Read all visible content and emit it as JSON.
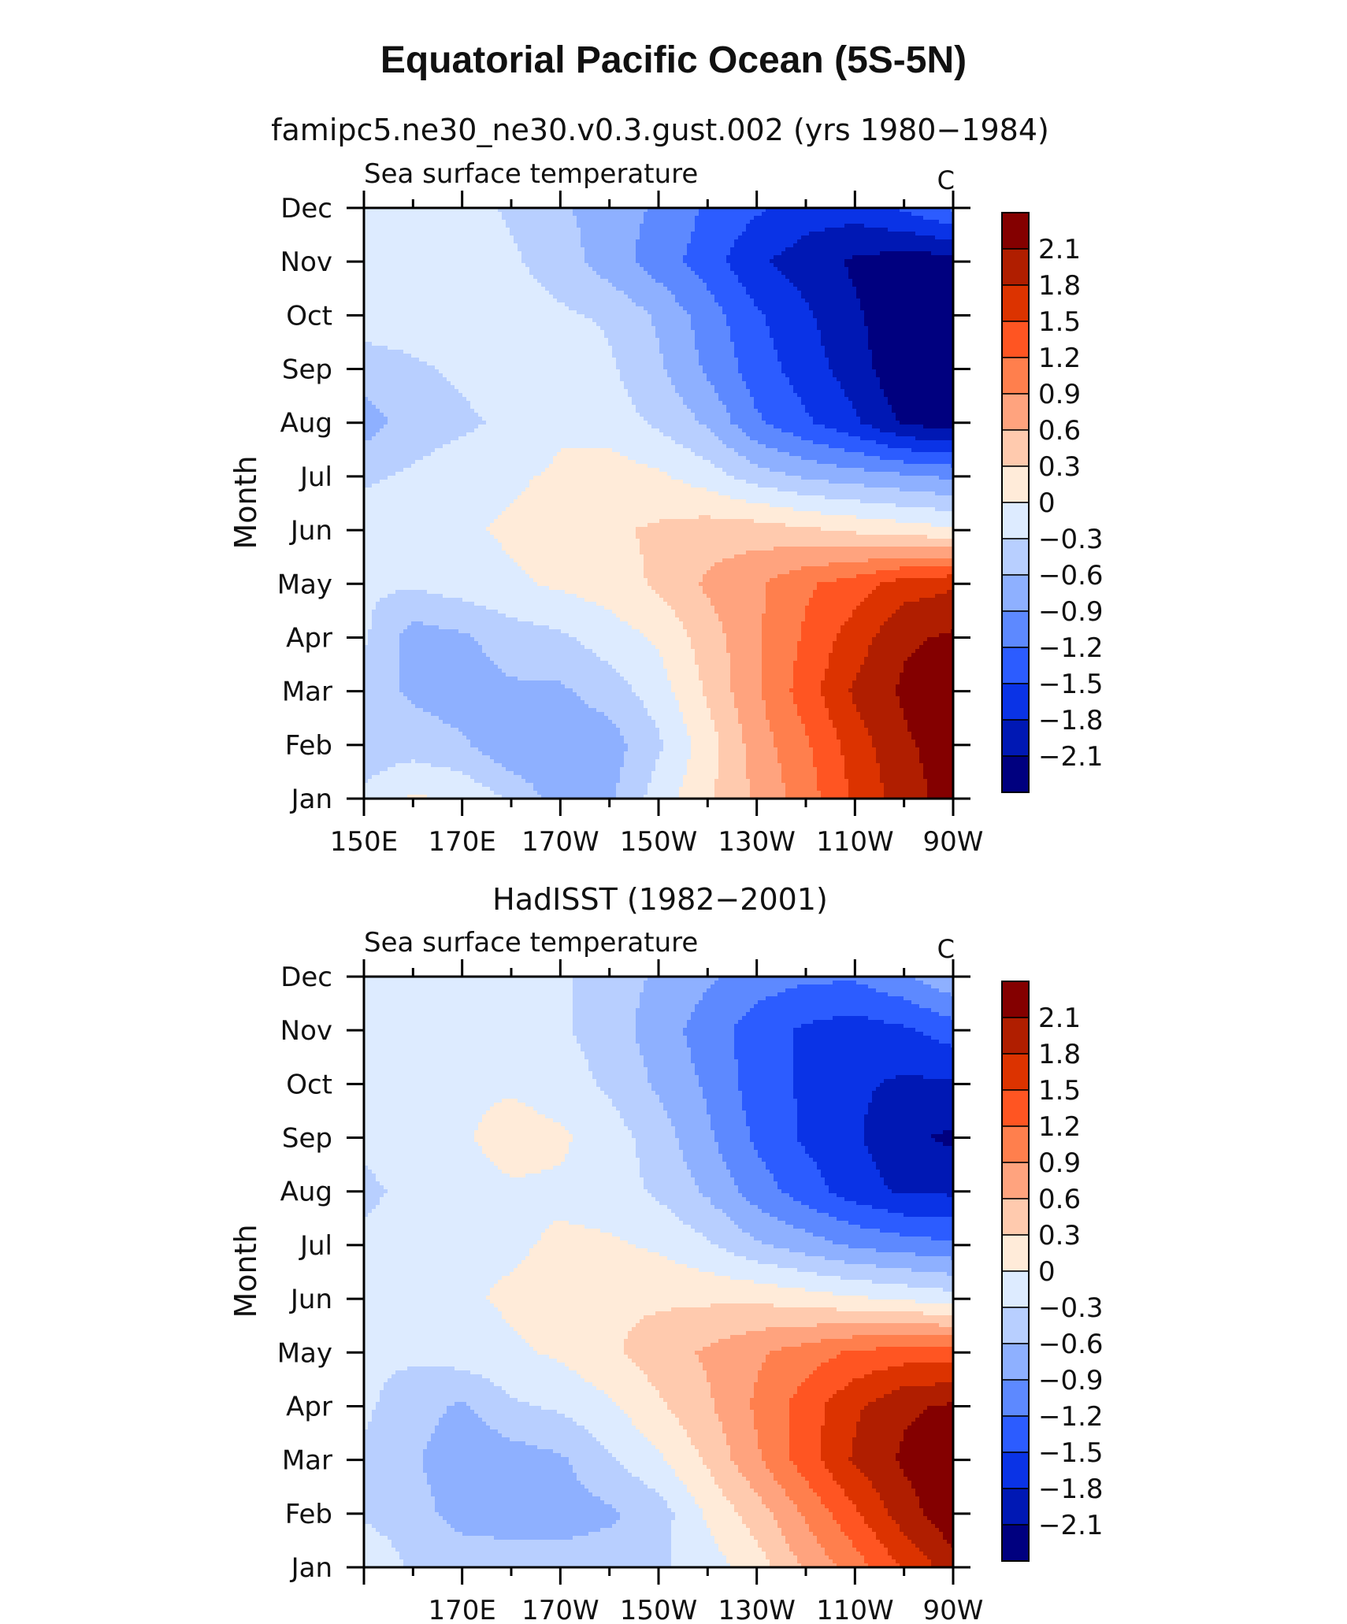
{
  "page": {
    "title": "Equatorial Pacific Ocean (5S-5N)"
  },
  "colorbar": {
    "levels": [
      "2.1",
      "1.8",
      "1.5",
      "1.2",
      "0.9",
      "0.6",
      "0.3",
      "0",
      "−0.3",
      "−0.6",
      "−0.9",
      "−1.2",
      "−1.5",
      "−1.8",
      "−2.1"
    ],
    "colors": [
      "#840000",
      "#B01E00",
      "#DC3300",
      "#FF5522",
      "#FF7F4D",
      "#FFA37E",
      "#FFCAAE",
      "#FFEBD9",
      "#DDEBFF",
      "#B8CFFF",
      "#8EB0FF",
      "#5D89FF",
      "#2C5CFF",
      "#0A33E6",
      "#0018B4",
      "#00007F"
    ]
  },
  "chart_data": [
    {
      "type": "heatmap",
      "name": "model",
      "title": "famipc5.ne30_ne30.v0.3.gust.002 (yrs 1980−1984)",
      "subtitle_left": "Sea surface temperature",
      "subtitle_right": "C",
      "ylabel": "Month",
      "months": [
        "Jan",
        "Feb",
        "Mar",
        "Apr",
        "May",
        "Jun",
        "Jul",
        "Aug",
        "Sep",
        "Oct",
        "Nov",
        "Dec"
      ],
      "lon_ticks": [
        "150E",
        "170E",
        "170W",
        "150W",
        "130W",
        "110W",
        "90W"
      ],
      "xlim": [
        150,
        270
      ],
      "x": [
        150,
        160,
        170,
        180,
        190,
        200,
        210,
        220,
        230,
        240,
        250,
        260,
        270
      ],
      "z": [
        [
          -0.1,
          0.2,
          0.1,
          -0.2,
          -0.6,
          -0.5,
          0.0,
          0.4,
          0.8,
          1.2,
          1.7,
          2.1,
          2.4
        ],
        [
          -0.3,
          -0.3,
          -0.4,
          -0.7,
          -0.7,
          -0.6,
          -0.2,
          0.3,
          0.9,
          1.3,
          1.8,
          2.2,
          2.4
        ],
        [
          -0.3,
          -0.5,
          -0.6,
          -0.5,
          -0.5,
          -0.3,
          0.0,
          0.5,
          1.0,
          1.5,
          2.0,
          2.3,
          2.5
        ],
        [
          -0.1,
          -0.6,
          -0.5,
          -0.3,
          -0.2,
          0.0,
          0.2,
          0.6,
          1.0,
          1.4,
          1.8,
          2.2,
          2.3
        ],
        [
          -0.1,
          -0.1,
          0.0,
          0.1,
          0.2,
          0.3,
          0.5,
          0.8,
          1.0,
          1.3,
          1.5,
          1.8,
          1.9
        ],
        [
          0.0,
          0.1,
          0.1,
          0.2,
          0.3,
          0.4,
          0.5,
          0.6,
          0.6,
          0.5,
          0.4,
          0.3,
          0.2
        ],
        [
          -0.2,
          -0.1,
          0.0,
          0.1,
          0.2,
          0.3,
          0.2,
          0.0,
          -0.3,
          -0.5,
          -0.6,
          -0.7,
          -0.8
        ],
        [
          -0.6,
          -0.3,
          -0.2,
          -0.1,
          0.1,
          0.0,
          -0.2,
          -0.5,
          -1.0,
          -1.3,
          -1.6,
          -2.0,
          -2.1
        ],
        [
          -0.3,
          -0.2,
          -0.1,
          0.0,
          0.1,
          -0.1,
          -0.4,
          -0.8,
          -1.2,
          -1.5,
          -1.8,
          -2.2,
          -2.3
        ],
        [
          0.0,
          0.0,
          0.1,
          0.0,
          -0.1,
          -0.2,
          -0.5,
          -0.9,
          -1.3,
          -1.6,
          -1.9,
          -2.2,
          -2.4
        ],
        [
          0.1,
          0.1,
          0.0,
          -0.1,
          -0.3,
          -0.6,
          -0.9,
          -1.2,
          -1.6,
          -1.8,
          -2.0,
          -2.1,
          -2.1
        ],
        [
          0.0,
          0.0,
          0.0,
          -0.2,
          -0.4,
          -0.6,
          -0.8,
          -1.1,
          -1.3,
          -1.5,
          -1.5,
          -1.3,
          -1.0
        ]
      ]
    },
    {
      "type": "heatmap",
      "name": "obs",
      "title": "HadISST (1982−2001)",
      "subtitle_left": "Sea surface temperature",
      "subtitle_right": "C",
      "ylabel": "Month",
      "months": [
        "Jan",
        "Feb",
        "Mar",
        "Apr",
        "May",
        "Jun",
        "Jul",
        "Aug",
        "Sep",
        "Oct",
        "Nov",
        "Dec"
      ],
      "lon_ticks": [
        "170E",
        "170W",
        "150W",
        "130W",
        "110W",
        "90W"
      ],
      "xlim": [
        150,
        270
      ],
      "x": [
        150,
        160,
        170,
        180,
        190,
        200,
        210,
        220,
        230,
        240,
        250,
        260,
        270
      ],
      "z": [
        [
          0.1,
          -0.2,
          -0.2,
          -0.3,
          -0.3,
          -0.3,
          -0.2,
          0.0,
          0.3,
          0.8,
          1.2,
          1.7,
          2.1
        ],
        [
          -0.2,
          -0.3,
          -0.6,
          -0.6,
          -0.6,
          -0.5,
          -0.3,
          0.2,
          0.6,
          1.1,
          1.6,
          2.1,
          2.5
        ],
        [
          -0.2,
          -0.4,
          -0.7,
          -0.6,
          -0.5,
          -0.2,
          0.1,
          0.5,
          1.0,
          1.5,
          2.0,
          2.3,
          2.5
        ],
        [
          -0.1,
          -0.3,
          -0.5,
          -0.2,
          -0.1,
          0.1,
          0.4,
          0.7,
          1.1,
          1.5,
          1.9,
          2.2,
          2.3
        ],
        [
          -0.1,
          -0.1,
          0.0,
          0.1,
          0.2,
          0.4,
          0.6,
          0.8,
          1.0,
          1.2,
          1.4,
          1.5,
          1.5
        ],
        [
          0.0,
          0.1,
          0.1,
          0.2,
          0.3,
          0.4,
          0.4,
          0.4,
          0.4,
          0.3,
          0.2,
          0.1,
          0.0
        ],
        [
          -0.1,
          0.0,
          0.1,
          0.1,
          0.2,
          0.2,
          0.1,
          -0.1,
          -0.4,
          -0.6,
          -0.8,
          -0.9,
          -1.0
        ],
        [
          -0.2,
          -0.1,
          0.0,
          0.1,
          0.1,
          0.0,
          -0.2,
          -0.5,
          -0.9,
          -1.2,
          -1.5,
          -1.7,
          -1.7
        ],
        [
          -0.1,
          0.0,
          0.1,
          0.3,
          0.2,
          0.0,
          -0.3,
          -0.7,
          -1.1,
          -1.4,
          -1.6,
          -1.9,
          -2.0
        ],
        [
          0.1,
          0.1,
          0.1,
          0.1,
          0.0,
          -0.2,
          -0.5,
          -0.8,
          -1.2,
          -1.4,
          -1.6,
          -1.7,
          -1.7
        ],
        [
          0.1,
          0.1,
          0.1,
          0.0,
          -0.1,
          -0.3,
          -0.6,
          -0.9,
          -1.2,
          -1.4,
          -1.5,
          -1.4,
          -1.2
        ],
        [
          0.1,
          0.1,
          0.1,
          0.0,
          -0.1,
          -0.3,
          -0.5,
          -0.7,
          -0.9,
          -1.0,
          -1.0,
          -0.8,
          -0.5
        ]
      ]
    }
  ]
}
